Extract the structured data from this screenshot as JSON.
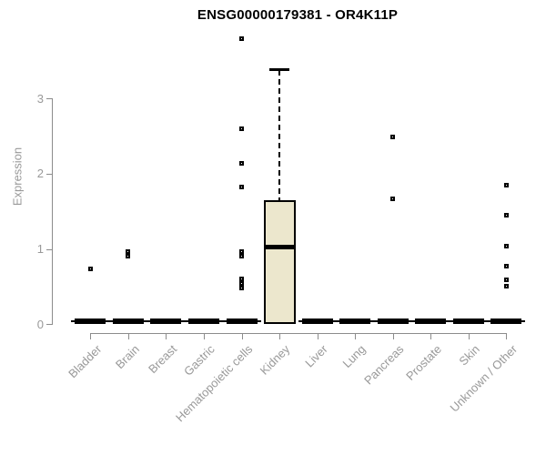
{
  "page": {
    "background": "#ffffff"
  },
  "header": {
    "title": "ENSG00000179381 - OR4K11P"
  },
  "colors": {
    "box_fill": "#ece7cd",
    "box_stroke": "#000000",
    "axis": "#8c8c8c",
    "muted_label": "#999999",
    "title_text": "#000000",
    "background": "#ffffff"
  },
  "chart_data": {
    "type": "boxplot",
    "title": "ENSG00000179381 - OR4K11P",
    "xlabel": "",
    "ylabel": "Expression",
    "ylim": [
      0,
      3.85
    ],
    "yticks": [
      0,
      1,
      2,
      3
    ],
    "grid": false,
    "legend": "none",
    "box_fill": "#ece7cd",
    "categories": [
      "Bladder",
      "Brain",
      "Breast",
      "Gastric",
      "Hematopoietic cells",
      "Kidney",
      "Liver",
      "Lung",
      "Pancreas",
      "Prostate",
      "Skin",
      "Unknown / Other"
    ],
    "series": [
      {
        "name": "Bladder",
        "q1": 0,
        "median": 0,
        "q3": 0,
        "whisker_low": 0,
        "whisker_high": 0,
        "outliers": [
          0.73
        ]
      },
      {
        "name": "Brain",
        "q1": 0,
        "median": 0,
        "q3": 0,
        "whisker_low": 0,
        "whisker_high": 0,
        "outliers": [
          0.97,
          0.9
        ]
      },
      {
        "name": "Breast",
        "q1": 0,
        "median": 0,
        "q3": 0,
        "whisker_low": 0,
        "whisker_high": 0,
        "outliers": []
      },
      {
        "name": "Gastric",
        "q1": 0,
        "median": 0,
        "q3": 0,
        "whisker_low": 0,
        "whisker_high": 0,
        "outliers": []
      },
      {
        "name": "Hematopoietic cells",
        "q1": 0,
        "median": 0,
        "q3": 0,
        "whisker_low": 0,
        "whisker_high": 0,
        "outliers": [
          3.8,
          2.6,
          2.14,
          1.83,
          0.97,
          0.9,
          0.6,
          0.54,
          0.48
        ]
      },
      {
        "name": "Kidney",
        "q1": 0,
        "median": 1.02,
        "q3": 1.65,
        "whisker_low": 0,
        "whisker_high": 3.39,
        "outliers": []
      },
      {
        "name": "Liver",
        "q1": 0,
        "median": 0,
        "q3": 0,
        "whisker_low": 0,
        "whisker_high": 0,
        "outliers": []
      },
      {
        "name": "Lung",
        "q1": 0,
        "median": 0,
        "q3": 0,
        "whisker_low": 0,
        "whisker_high": 0,
        "outliers": []
      },
      {
        "name": "Pancreas",
        "q1": 0,
        "median": 0,
        "q3": 0,
        "whisker_low": 0,
        "whisker_high": 0,
        "outliers": [
          2.49,
          1.67
        ]
      },
      {
        "name": "Prostate",
        "q1": 0,
        "median": 0,
        "q3": 0,
        "whisker_low": 0,
        "whisker_high": 0,
        "outliers": []
      },
      {
        "name": "Skin",
        "q1": 0,
        "median": 0,
        "q3": 0,
        "whisker_low": 0,
        "whisker_high": 0,
        "outliers": []
      },
      {
        "name": "Unknown / Other",
        "q1": 0,
        "median": 0,
        "q3": 0,
        "whisker_low": 0,
        "whisker_high": 0,
        "outliers": [
          1.85,
          1.45,
          1.04,
          0.77,
          0.59,
          0.5
        ]
      }
    ]
  }
}
